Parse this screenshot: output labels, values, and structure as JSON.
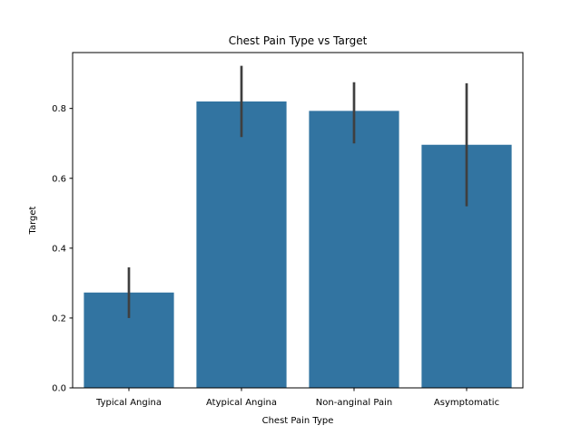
{
  "chart_data": {
    "type": "bar",
    "title": "Chest Pain Type vs Target",
    "xlabel": "Chest Pain Type",
    "ylabel": "Target",
    "categories": [
      "Typical Angina",
      "Atypical Angina",
      "Non-anginal Pain",
      "Asymptomatic"
    ],
    "values": [
      0.273,
      0.82,
      0.793,
      0.696
    ],
    "error_bars": [
      [
        0.2,
        0.345
      ],
      [
        0.718,
        0.922
      ],
      [
        0.7,
        0.875
      ],
      [
        0.52,
        0.872
      ]
    ],
    "ylim": [
      0,
      0.96
    ],
    "yticks": [
      0.0,
      0.2,
      0.4,
      0.6,
      0.8
    ],
    "ytick_labels": [
      "0.0",
      "0.2",
      "0.4",
      "0.6",
      "0.8"
    ],
    "grid": false,
    "colors": {
      "bar": "#3274a1",
      "error_bar": "#3f3f3f",
      "axis": "#000000"
    }
  }
}
